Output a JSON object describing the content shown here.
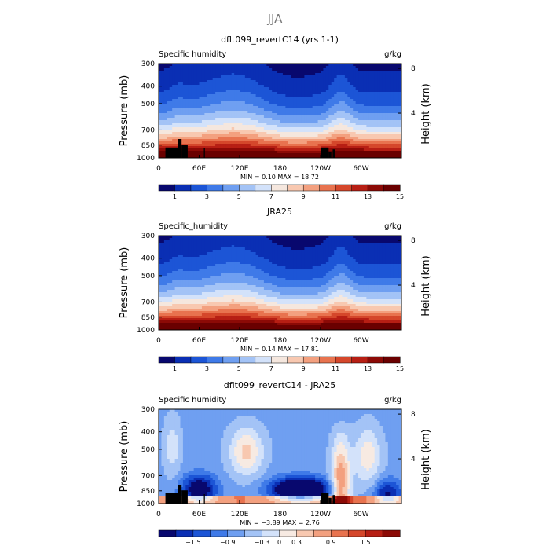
{
  "figure": {
    "title": "JJA"
  },
  "chart_data": [
    {
      "type": "heatmap",
      "title": "dflt099_revertC14 (yrs 1-1)",
      "subtitle_left": "Specific humidity",
      "units": "g/kg",
      "ylabel": "Pressure (mb)",
      "ylabel_right": "Height (km)",
      "xticks": [
        "0",
        "60E",
        "120E",
        "180",
        "120W",
        "60W"
      ],
      "yticks": [
        "300",
        "400",
        "500",
        "700",
        "850",
        "1000"
      ],
      "yticks_right": [
        "8",
        "4"
      ],
      "stats": "MIN =    0.10   MAX =   18.72",
      "colorbar_ticks": [
        "1",
        "3",
        "5",
        "7",
        "9",
        "11",
        "13",
        "15"
      ],
      "colorbar_colors": [
        "#08086e",
        "#0a2fb4",
        "#1c55d6",
        "#3f7ae8",
        "#6f9ff1",
        "#a3c3f6",
        "#d3e2fa",
        "#f5e7de",
        "#f8c8b0",
        "#f3a07f",
        "#e8734f",
        "#d5472b",
        "#b71f14",
        "#8c0a06",
        "#6a0000"
      ],
      "field": {
        "kind": "q",
        "min": 0.1,
        "max": 18.72
      },
      "topography": true
    },
    {
      "type": "heatmap",
      "title": "JRA25",
      "subtitle_left": "Specific_humidity",
      "units": "g/kg",
      "ylabel": "Pressure (mb)",
      "ylabel_right": "Height (km)",
      "xticks": [
        "0",
        "60E",
        "120E",
        "180",
        "120W",
        "60W"
      ],
      "yticks": [
        "300",
        "400",
        "500",
        "700",
        "850",
        "1000"
      ],
      "yticks_right": [
        "8",
        "4"
      ],
      "stats": "MIN =    0.14   MAX =   17.81",
      "colorbar_ticks": [
        "1",
        "3",
        "5",
        "7",
        "9",
        "11",
        "13",
        "15"
      ],
      "colorbar_colors": [
        "#08086e",
        "#0a2fb4",
        "#1c55d6",
        "#3f7ae8",
        "#6f9ff1",
        "#a3c3f6",
        "#d3e2fa",
        "#f5e7de",
        "#f8c8b0",
        "#f3a07f",
        "#e8734f",
        "#d5472b",
        "#b71f14",
        "#8c0a06",
        "#6a0000"
      ],
      "field": {
        "kind": "q",
        "min": 0.14,
        "max": 17.81
      },
      "topography": false
    },
    {
      "type": "heatmap",
      "title": "dflt099_revertC14 - JRA25",
      "subtitle_left": "Specific humidity",
      "units": "g/kg",
      "ylabel": "Pressure (mb)",
      "ylabel_right": "Height (km)",
      "xticks": [
        "0",
        "60E",
        "120E",
        "180",
        "120W",
        "60W"
      ],
      "yticks": [
        "300",
        "400",
        "500",
        "700",
        "850",
        "1000"
      ],
      "yticks_right": [
        "8",
        "4"
      ],
      "stats": "MIN =   −3.89   MAX =    2.76",
      "colorbar_ticks": [
        "−1.5",
        "−0.9",
        "−0.3",
        "0",
        "0.3",
        "0.9",
        "1.5"
      ],
      "colorbar_colors": [
        "#08086e",
        "#0a2fb4",
        "#1c55d6",
        "#3f7ae8",
        "#6f9ff1",
        "#a3c3f6",
        "#d3e2fa",
        "#f7eae2",
        "#f8c8b0",
        "#f3a07f",
        "#e8734f",
        "#d5472b",
        "#b71f14",
        "#8c0a06"
      ],
      "field": {
        "kind": "diff",
        "min": -3.89,
        "max": 2.76
      },
      "topography": true
    }
  ]
}
